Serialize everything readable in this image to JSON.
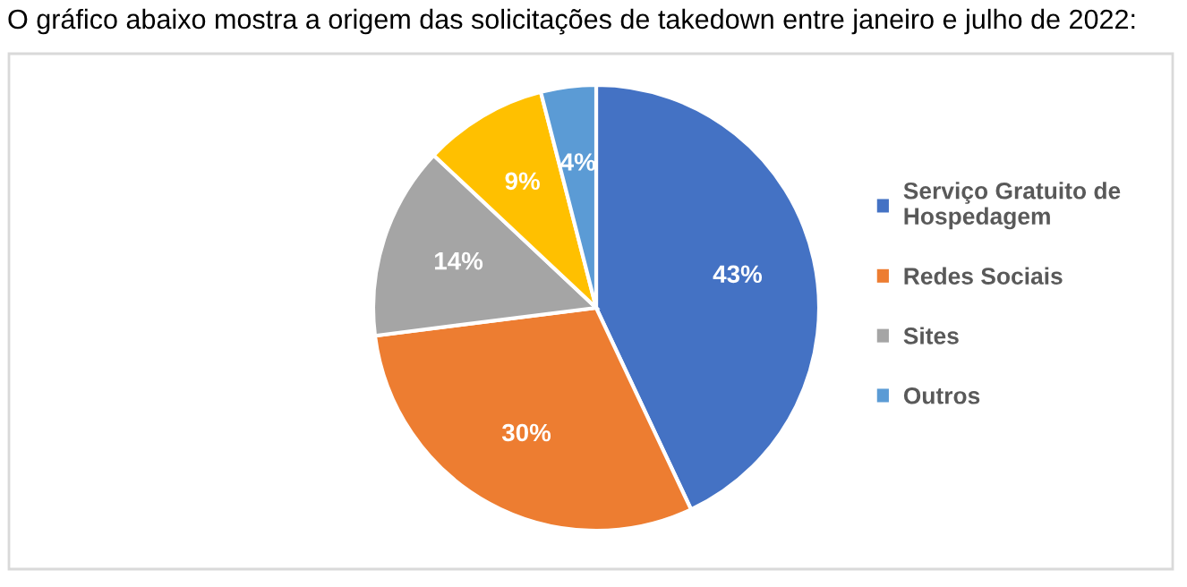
{
  "chart_data": {
    "type": "pie",
    "title": "O gráfico abaixo mostra a origem das solicitações de takedown entre janeiro e julho de 2022:",
    "categories": [
      "Serviço Gratuito de\nHospedagem",
      "Redes Sociais",
      "Sites",
      null,
      "Outros"
    ],
    "values": [
      43,
      30,
      14,
      9,
      4
    ],
    "colors": [
      "#4472c4",
      "#ed7d31",
      "#a5a5a5",
      "#ffc000",
      "#5b9bd5"
    ],
    "value_labels": [
      "43%",
      "30%",
      "14%",
      "9%",
      "4%"
    ],
    "legend": "right"
  }
}
